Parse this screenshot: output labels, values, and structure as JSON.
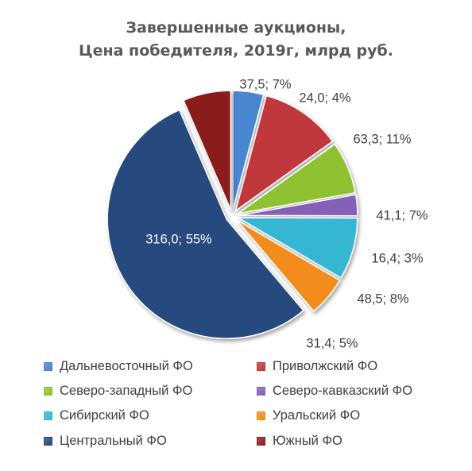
{
  "chart_data": {
    "type": "pie",
    "title": "Завершенные аукционы,",
    "subtitle": "Цена победителя, 2019г, млрд руб.",
    "legend_position": "bottom",
    "series": [
      {
        "name": "Дальневосточный ФО",
        "value": 24.0,
        "percent": 4,
        "label": "24,0; 4%",
        "color": "#4a86d0",
        "exploded": true
      },
      {
        "name": "Приволжский ФО",
        "value": 63.3,
        "percent": 11,
        "label": "63,3; 11%",
        "color": "#c0393b",
        "exploded": true
      },
      {
        "name": "Северо-западный ФО",
        "value": 41.1,
        "percent": 7,
        "label": "41,1; 7%",
        "color": "#8fc232",
        "exploded": true
      },
      {
        "name": "Северо-кавказский ФО",
        "value": 16.4,
        "percent": 3,
        "label": "16,4; 3%",
        "color": "#8560b8",
        "exploded": true
      },
      {
        "name": "Сибирский ФО",
        "value": 48.5,
        "percent": 8,
        "label": "48,5; 8%",
        "color": "#35b7d4",
        "exploded": true
      },
      {
        "name": "Уральский ФО",
        "value": 31.4,
        "percent": 5,
        "label": "31,4; 5%",
        "color": "#f28c1e",
        "exploded": true
      },
      {
        "name": "Центральный ФО",
        "value": 316.0,
        "percent": 55,
        "label": "316,0; 55%",
        "color": "#27497e",
        "exploded": true
      },
      {
        "name": "Южный ФО",
        "value": 37.5,
        "percent": 7,
        "label": "37,5; 7%",
        "color": "#8b1f1f",
        "exploded": true
      }
    ]
  }
}
